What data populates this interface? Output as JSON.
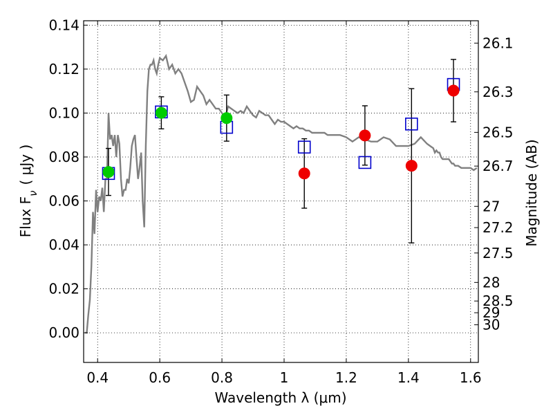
{
  "chart_data": {
    "type": "scatter",
    "xlabel": "Wavelength  λ (μm)",
    "ylabel": "Flux  F",
    "ylabel_sub": "ν",
    "ylabel_unit": "( μJy )",
    "y2label": "Magnitude (AB)",
    "xlim": [
      0.355,
      1.625
    ],
    "ylim": [
      -0.0135,
      0.142
    ],
    "grid": true,
    "x_ticks": [
      {
        "value": 0.4,
        "label": "0.4"
      },
      {
        "value": 0.6,
        "label": "0.6"
      },
      {
        "value": 0.8,
        "label": "0.8"
      },
      {
        "value": 1.0,
        "label": "1"
      },
      {
        "value": 1.2,
        "label": "1.2"
      },
      {
        "value": 1.4,
        "label": "1.4"
      },
      {
        "value": 1.6,
        "label": "1.6"
      }
    ],
    "y_ticks": [
      {
        "value": 0.0,
        "label": "0.00"
      },
      {
        "value": 0.02,
        "label": "0.02"
      },
      {
        "value": 0.04,
        "label": "0.04"
      },
      {
        "value": 0.06,
        "label": "0.06"
      },
      {
        "value": 0.08,
        "label": "0.08"
      },
      {
        "value": 0.1,
        "label": "0.10"
      },
      {
        "value": 0.12,
        "label": "0.12"
      },
      {
        "value": 0.14,
        "label": "0.14"
      }
    ],
    "y2_ticks": [
      {
        "mag": 26.1,
        "label": "26.1"
      },
      {
        "mag": 26.3,
        "label": "26.3"
      },
      {
        "mag": 26.5,
        "label": "26.5"
      },
      {
        "mag": 26.7,
        "label": "26.7"
      },
      {
        "mag": 27,
        "label": "27"
      },
      {
        "mag": 27.2,
        "label": "27.2"
      },
      {
        "mag": 27.5,
        "label": "27.5"
      },
      {
        "mag": 28,
        "label": "28"
      },
      {
        "mag": 28.5,
        "label": "28.5"
      },
      {
        "mag": 29,
        "label": "29"
      },
      {
        "mag": 30,
        "label": "30"
      }
    ],
    "model_spectrum": {
      "color": "#808080",
      "x": [
        0.36,
        0.365,
        0.37,
        0.375,
        0.38,
        0.385,
        0.39,
        0.395,
        0.4,
        0.405,
        0.41,
        0.415,
        0.42,
        0.425,
        0.43,
        0.435,
        0.44,
        0.445,
        0.45,
        0.455,
        0.46,
        0.465,
        0.47,
        0.475,
        0.48,
        0.485,
        0.49,
        0.495,
        0.5,
        0.505,
        0.51,
        0.515,
        0.52,
        0.525,
        0.53,
        0.535,
        0.54,
        0.545,
        0.55,
        0.555,
        0.56,
        0.565,
        0.57,
        0.575,
        0.58,
        0.585,
        0.59,
        0.595,
        0.6,
        0.61,
        0.62,
        0.63,
        0.64,
        0.65,
        0.66,
        0.67,
        0.68,
        0.69,
        0.7,
        0.71,
        0.72,
        0.73,
        0.74,
        0.75,
        0.76,
        0.77,
        0.78,
        0.79,
        0.8,
        0.81,
        0.82,
        0.83,
        0.84,
        0.85,
        0.86,
        0.87,
        0.88,
        0.89,
        0.9,
        0.91,
        0.92,
        0.93,
        0.94,
        0.95,
        0.96,
        0.97,
        0.98,
        0.99,
        1.0,
        1.01,
        1.02,
        1.03,
        1.04,
        1.05,
        1.06,
        1.07,
        1.08,
        1.09,
        1.1,
        1.11,
        1.12,
        1.13,
        1.14,
        1.15,
        1.16,
        1.18,
        1.2,
        1.22,
        1.24,
        1.26,
        1.28,
        1.3,
        1.32,
        1.34,
        1.36,
        1.38,
        1.4,
        1.42,
        1.44,
        1.46,
        1.47,
        1.48,
        1.485,
        1.49,
        1.495,
        1.5,
        1.505,
        1.51,
        1.515,
        1.52,
        1.525,
        1.53,
        1.535,
        1.54,
        1.545,
        1.55,
        1.56,
        1.57,
        1.58,
        1.59,
        1.6,
        1.61,
        1.62
      ],
      "y": [
        0.0,
        0.0,
        0.008,
        0.015,
        0.03,
        0.055,
        0.045,
        0.065,
        0.055,
        0.062,
        0.06,
        0.066,
        0.055,
        0.07,
        0.07,
        0.1,
        0.088,
        0.09,
        0.085,
        0.09,
        0.08,
        0.09,
        0.086,
        0.07,
        0.062,
        0.065,
        0.065,
        0.07,
        0.068,
        0.075,
        0.085,
        0.088,
        0.09,
        0.08,
        0.07,
        0.075,
        0.082,
        0.06,
        0.048,
        0.085,
        0.11,
        0.12,
        0.122,
        0.122,
        0.124,
        0.12,
        0.118,
        0.122,
        0.125,
        0.124,
        0.126,
        0.12,
        0.122,
        0.118,
        0.12,
        0.118,
        0.114,
        0.11,
        0.105,
        0.106,
        0.112,
        0.11,
        0.108,
        0.104,
        0.106,
        0.104,
        0.102,
        0.102,
        0.1,
        0.098,
        0.103,
        0.102,
        0.101,
        0.1,
        0.101,
        0.1,
        0.103,
        0.101,
        0.099,
        0.098,
        0.101,
        0.1,
        0.099,
        0.099,
        0.097,
        0.095,
        0.097,
        0.096,
        0.096,
        0.095,
        0.094,
        0.093,
        0.094,
        0.093,
        0.093,
        0.092,
        0.092,
        0.091,
        0.091,
        0.091,
        0.091,
        0.091,
        0.09,
        0.09,
        0.09,
        0.09,
        0.089,
        0.087,
        0.089,
        0.088,
        0.087,
        0.087,
        0.089,
        0.088,
        0.085,
        0.085,
        0.085,
        0.086,
        0.089,
        0.086,
        0.085,
        0.084,
        0.082,
        0.083,
        0.082,
        0.082,
        0.08,
        0.079,
        0.079,
        0.079,
        0.079,
        0.079,
        0.078,
        0.077,
        0.077,
        0.076,
        0.076,
        0.075,
        0.075,
        0.075,
        0.075,
        0.074,
        0.075
      ]
    },
    "model_photometry": {
      "marker": "open-square",
      "color": "#0000cc",
      "points": [
        {
          "x": 0.435,
          "y": 0.0725
        },
        {
          "x": 0.605,
          "y": 0.1005
        },
        {
          "x": 0.815,
          "y": 0.0935
        },
        {
          "x": 1.065,
          "y": 0.0845
        },
        {
          "x": 1.26,
          "y": 0.0775
        },
        {
          "x": 1.41,
          "y": 0.095
        },
        {
          "x": 1.545,
          "y": 0.113
        }
      ]
    },
    "series": [
      {
        "marker": "filled-circle",
        "color": "#00cc00",
        "points": [
          {
            "x": 0.435,
            "y": 0.0732,
            "err": 0.0107
          },
          {
            "x": 0.605,
            "y": 0.1001,
            "err": 0.0073
          },
          {
            "x": 0.815,
            "y": 0.0977,
            "err": 0.0105
          }
        ]
      },
      {
        "marker": "filled-circle",
        "color": "#ee0000",
        "points": [
          {
            "x": 1.065,
            "y": 0.0725,
            "err": 0.0158
          },
          {
            "x": 1.26,
            "y": 0.0898,
            "err": 0.0135
          },
          {
            "x": 1.41,
            "y": 0.076,
            "err": 0.0351
          },
          {
            "x": 1.545,
            "y": 0.1102,
            "err": 0.0142
          }
        ]
      }
    ]
  }
}
